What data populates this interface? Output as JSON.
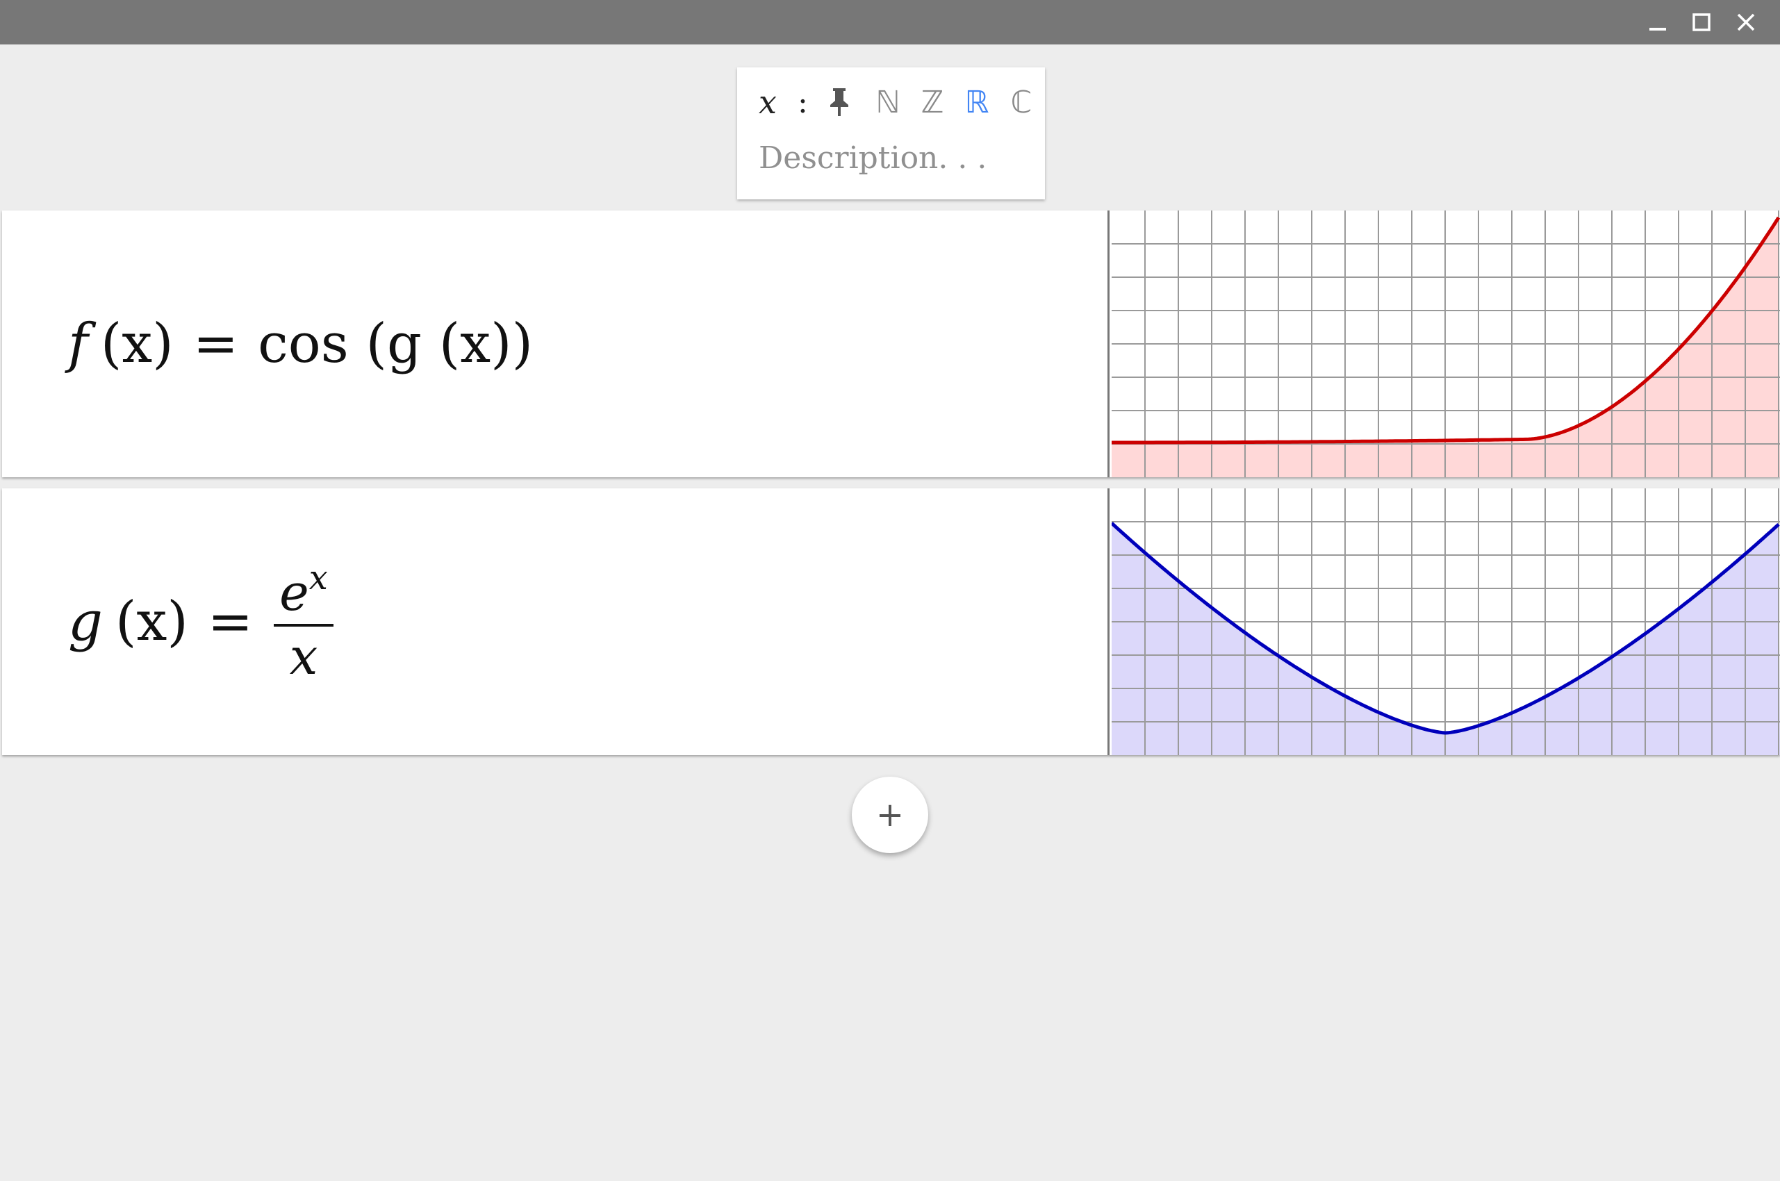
{
  "window": {
    "controls": [
      "minimize-icon",
      "maximize-icon",
      "close-icon"
    ]
  },
  "variable": {
    "name": "x",
    "colon": ":",
    "pin_icon": "pin-icon",
    "sets": [
      "ℕ",
      "ℤ",
      "ℝ",
      "ℂ"
    ],
    "selected_set": "ℝ",
    "description_placeholder": "Description. . .",
    "description_value": ""
  },
  "functions": [
    {
      "lhs_name": "f",
      "lhs_arg": "(x)",
      "equals": "=",
      "rhs": "cos (g (x))",
      "plot_color": "#cc0000",
      "plot_fill": "#ffd8d8"
    },
    {
      "lhs_name": "g",
      "lhs_arg": "(x)",
      "equals": "=",
      "rhs_numerator_base": "e",
      "rhs_numerator_exp": "x",
      "rhs_denominator": "x",
      "plot_color": "#0000bb",
      "plot_fill": "#dcd8fa"
    }
  ],
  "add_button": {
    "label": "+"
  },
  "colors": {
    "titlebar": "#777777",
    "background": "#ededed",
    "accent": "#4285f4",
    "grid": "#9a9a9a"
  }
}
